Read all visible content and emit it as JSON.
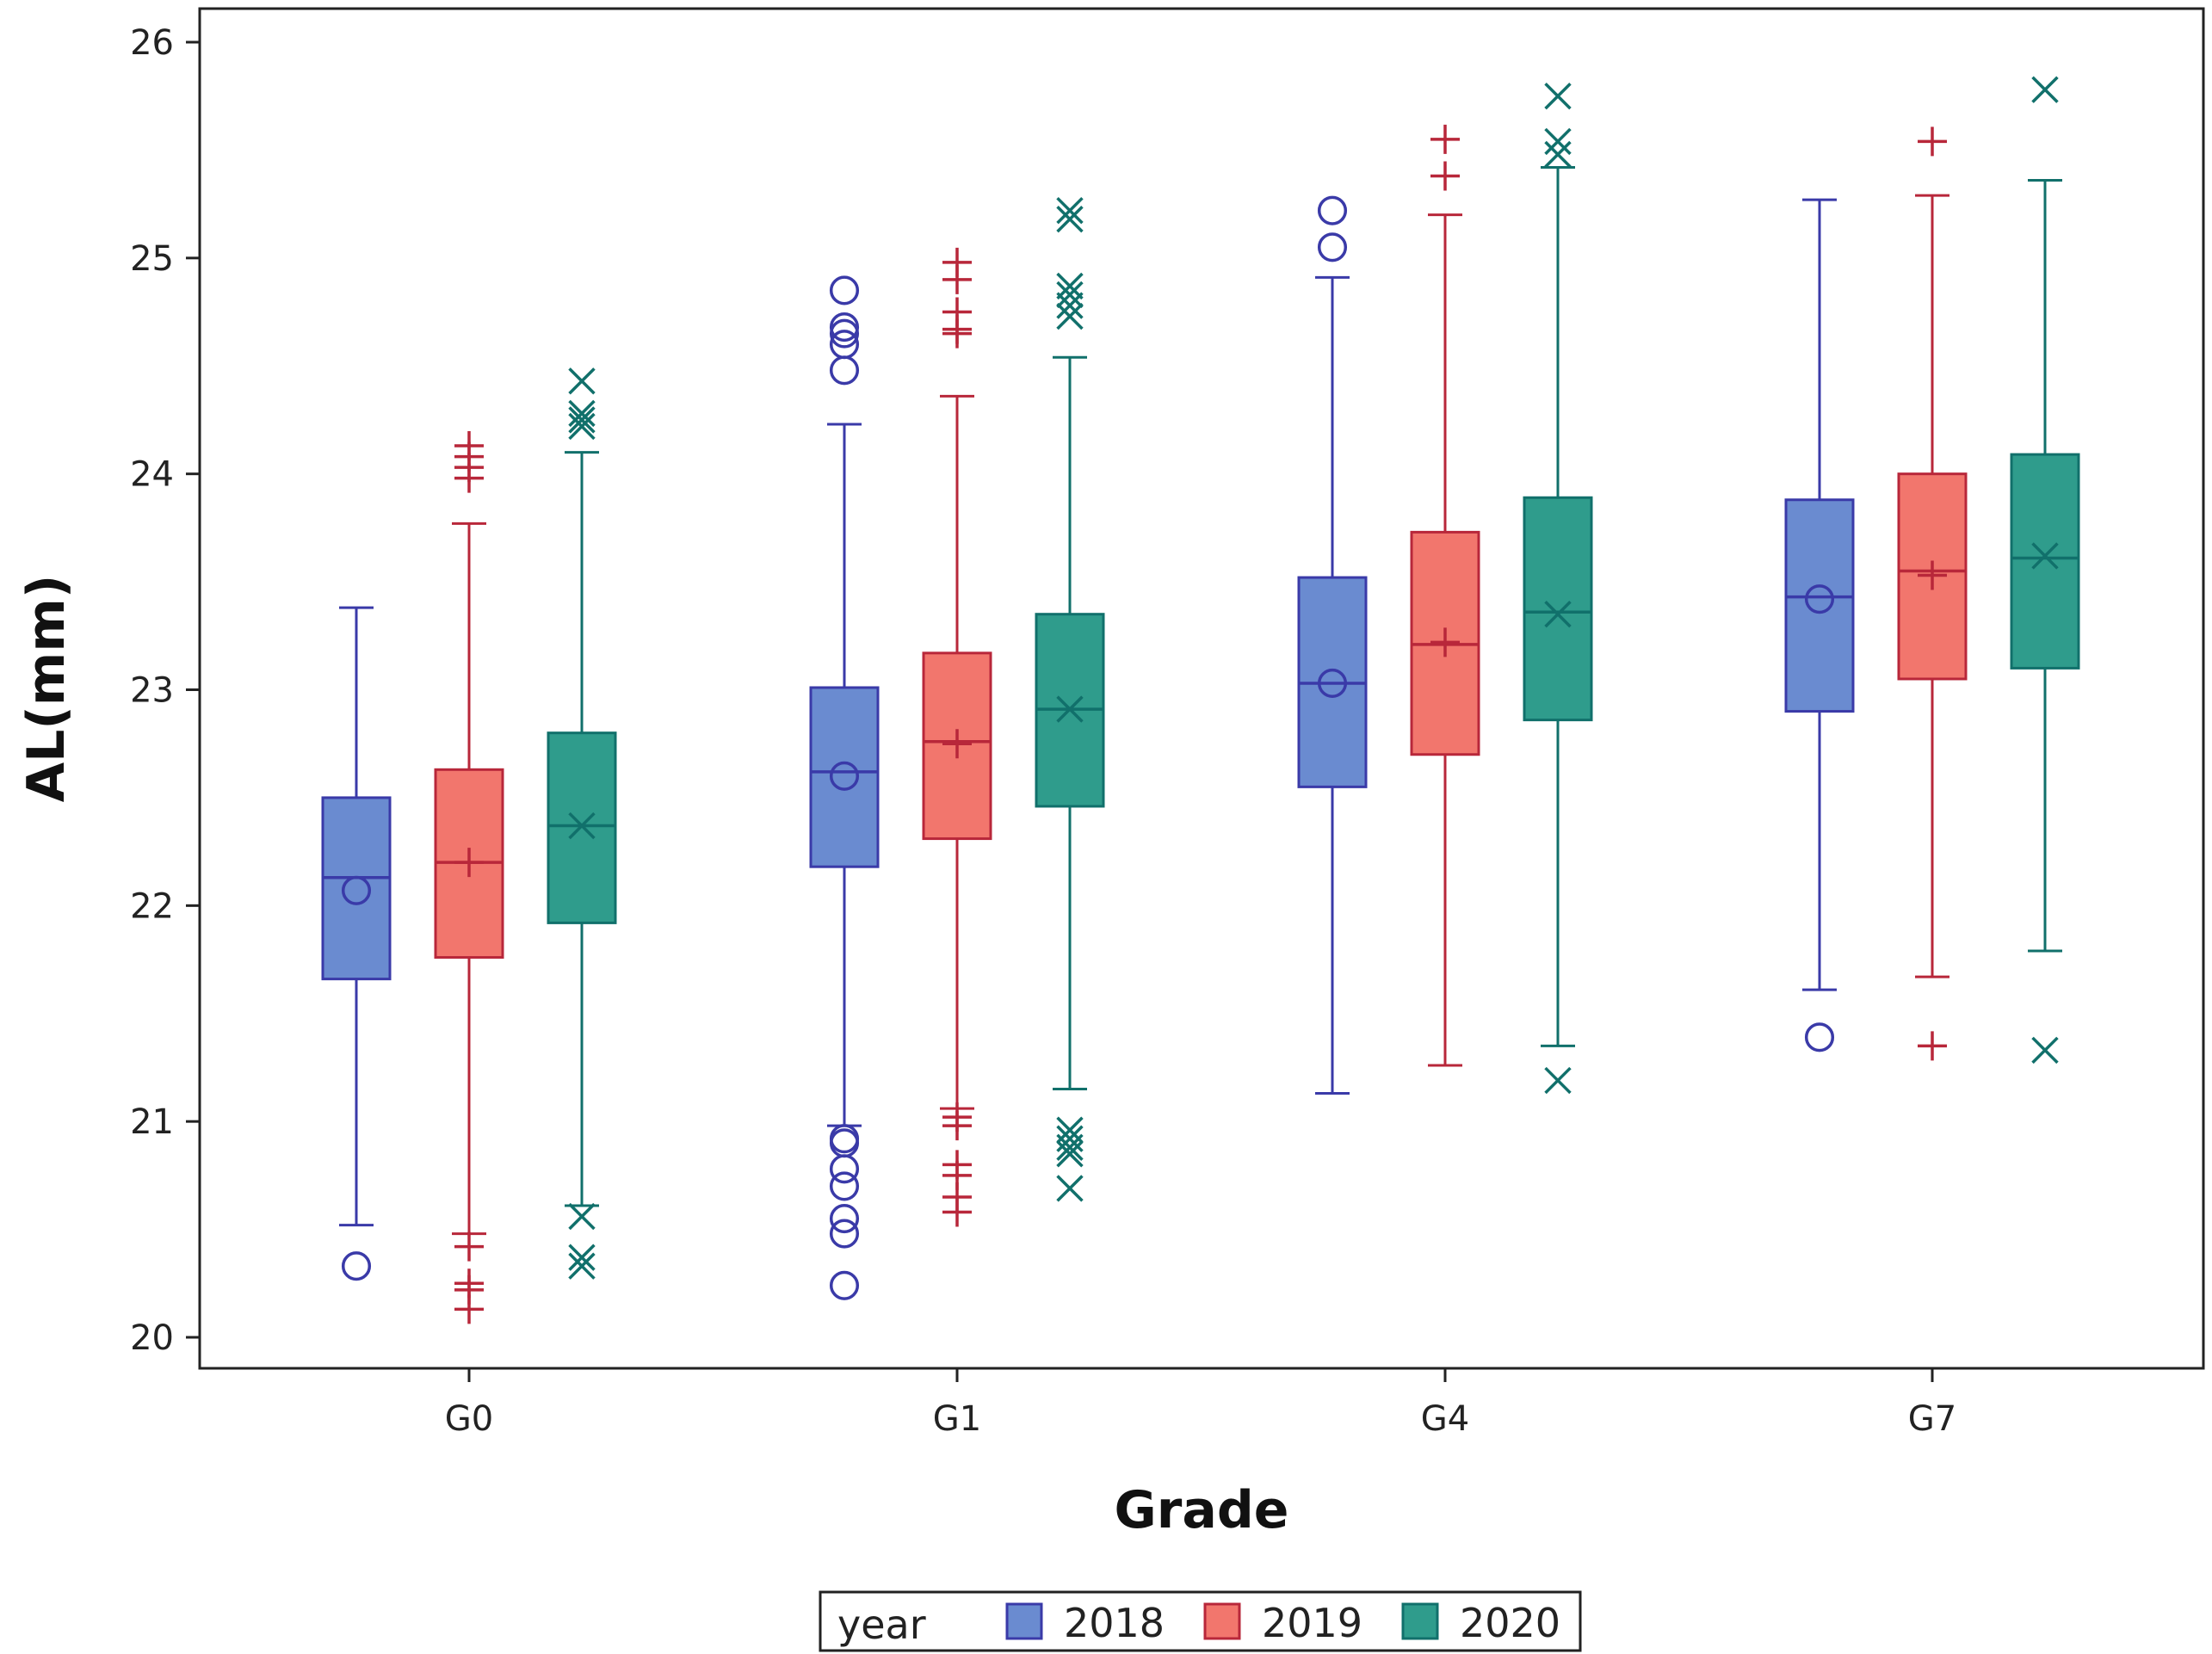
{
  "chart_data": {
    "type": "box",
    "xlabel": "Grade",
    "ylabel": "AL(mm)",
    "categories": [
      "G0",
      "G1",
      "G4",
      "G7"
    ],
    "ylim": [
      20,
      26
    ],
    "yticks": [
      20,
      21,
      22,
      23,
      24,
      25,
      26
    ],
    "grid": false,
    "legend": {
      "title": "year",
      "position": "bottom-center"
    },
    "series": [
      {
        "name": "2018",
        "color": "#6a8bd0",
        "stroke": "#3a3aa8",
        "marker": "circle",
        "boxes": [
          {
            "whisker_low": 20.52,
            "q1": 21.66,
            "median": 22.13,
            "q3": 22.5,
            "whisker_high": 23.38,
            "mean": 22.07,
            "outliers": [
              20.33
            ]
          },
          {
            "whisker_low": 20.98,
            "q1": 22.18,
            "median": 22.62,
            "q3": 23.01,
            "whisker_high": 24.23,
            "mean": 22.6,
            "outliers": [
              24.85,
              24.68,
              24.65,
              24.6,
              24.48,
              20.92,
              20.9,
              20.78,
              20.7,
              20.55,
              20.48,
              20.24
            ]
          },
          {
            "whisker_low": 21.13,
            "q1": 22.55,
            "median": 23.03,
            "q3": 23.52,
            "whisker_high": 24.91,
            "mean": 23.03,
            "outliers": [
              25.22,
              25.05
            ]
          },
          {
            "whisker_low": 21.61,
            "q1": 22.9,
            "median": 23.43,
            "q3": 23.88,
            "whisker_high": 25.27,
            "mean": 23.42,
            "outliers": [
              21.39
            ]
          }
        ]
      },
      {
        "name": "2019",
        "color": "#f2766d",
        "stroke": "#b8273a",
        "marker": "plus",
        "boxes": [
          {
            "whisker_low": 20.48,
            "q1": 21.76,
            "median": 22.2,
            "q3": 22.63,
            "whisker_high": 23.77,
            "mean": 22.2,
            "outliers": [
              24.13,
              24.08,
              24.03,
              23.98,
              20.42,
              20.25,
              20.22,
              20.13
            ]
          },
          {
            "whisker_low": 21.06,
            "q1": 22.31,
            "median": 22.76,
            "q3": 23.17,
            "whisker_high": 24.36,
            "mean": 22.75,
            "outliers": [
              24.98,
              24.9,
              24.75,
              24.67,
              24.65,
              21.02,
              20.98,
              20.8,
              20.75,
              20.65,
              20.58
            ]
          },
          {
            "whisker_low": 21.26,
            "q1": 22.7,
            "median": 23.21,
            "q3": 23.73,
            "whisker_high": 25.2,
            "mean": 23.22,
            "outliers": [
              25.55,
              25.38
            ]
          },
          {
            "whisker_low": 21.67,
            "q1": 23.05,
            "median": 23.55,
            "q3": 24.0,
            "whisker_high": 25.29,
            "mean": 23.53,
            "outliers": [
              25.54,
              21.35
            ]
          }
        ]
      },
      {
        "name": "2020",
        "color": "#2f9c8c",
        "stroke": "#11706b",
        "marker": "x",
        "boxes": [
          {
            "whisker_low": 20.61,
            "q1": 21.92,
            "median": 22.37,
            "q3": 22.8,
            "whisker_high": 24.1,
            "mean": 22.37,
            "outliers": [
              24.43,
              24.28,
              24.25,
              24.22,
              20.56,
              20.37,
              20.33
            ]
          },
          {
            "whisker_low": 21.15,
            "q1": 22.46,
            "median": 22.91,
            "q3": 23.35,
            "whisker_high": 24.54,
            "mean": 22.91,
            "outliers": [
              25.22,
              25.18,
              24.87,
              24.83,
              24.78,
              24.73,
              20.96,
              20.92,
              20.88,
              20.85,
              20.69
            ]
          },
          {
            "whisker_low": 21.35,
            "q1": 22.86,
            "median": 23.36,
            "q3": 23.89,
            "whisker_high": 25.42,
            "mean": 23.35,
            "outliers": [
              25.75,
              25.54,
              25.48,
              21.19
            ]
          },
          {
            "whisker_low": 21.79,
            "q1": 23.1,
            "median": 23.61,
            "q3": 24.09,
            "whisker_high": 25.36,
            "mean": 23.62,
            "outliers": [
              25.78,
              21.33
            ]
          }
        ]
      }
    ]
  }
}
